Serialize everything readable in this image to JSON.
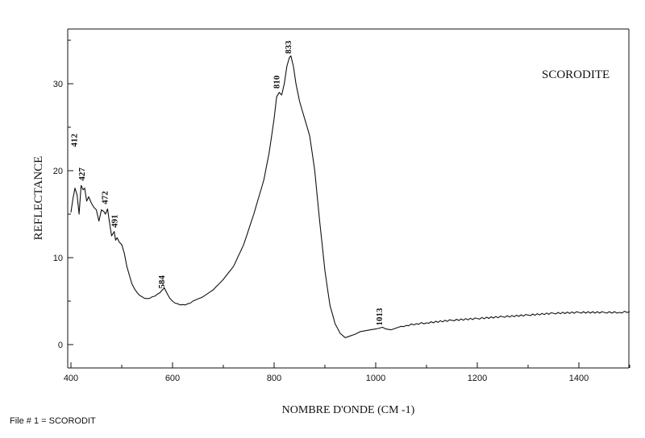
{
  "chart_data": {
    "type": "line",
    "title": "SCORODITE",
    "xlabel": "NOMBRE D'ONDE (CM -1)",
    "ylabel": "REFLECTANCE",
    "xlim": [
      400,
      1500
    ],
    "ylim": [
      -3,
      36
    ],
    "xticks": [
      400,
      600,
      800,
      1000,
      1200,
      1400
    ],
    "yticks": [
      0,
      10,
      20,
      30
    ],
    "grid": false,
    "series": [
      {
        "values_x": [
          400,
          404,
          408,
          412,
          416,
          420,
          424,
          427,
          431,
          435,
          440,
          445,
          450,
          455,
          460,
          465,
          468,
          472,
          476,
          480,
          485,
          488,
          491,
          495,
          500,
          505,
          510,
          515,
          520,
          530,
          540,
          550,
          560,
          570,
          580,
          584,
          590,
          600,
          610,
          620,
          630,
          640,
          660,
          680,
          700,
          720,
          740,
          760,
          780,
          790,
          800,
          805,
          810,
          815,
          820,
          825,
          830,
          833,
          838,
          843,
          850,
          860,
          870,
          880,
          890,
          900,
          910,
          920,
          930,
          940,
          950,
          960,
          970,
          980,
          990,
          1000,
          1008,
          1013,
          1020,
          1030,
          1040,
          1050,
          1060,
          1080,
          1100,
          1150,
          1200,
          1250,
          1300,
          1350,
          1400,
          1450,
          1480,
          1500
        ],
        "values_y": [
          15.2,
          16.8,
          18.0,
          17.2,
          15.0,
          18.3,
          17.8,
          18.0,
          16.5,
          17.0,
          16.3,
          15.8,
          15.5,
          14.2,
          15.5,
          15.3,
          15.0,
          15.6,
          14.0,
          12.5,
          13.0,
          12.0,
          12.3,
          11.8,
          11.5,
          10.5,
          9.0,
          8.0,
          7.0,
          6.0,
          5.5,
          5.3,
          5.5,
          5.8,
          6.3,
          6.5,
          5.8,
          5.0,
          4.7,
          4.6,
          4.7,
          5.0,
          5.5,
          6.3,
          7.5,
          9.0,
          11.5,
          15.0,
          19.0,
          22.0,
          26.0,
          28.5,
          29.0,
          28.7,
          30.0,
          32.0,
          33.0,
          33.2,
          32.0,
          30.0,
          28.0,
          26.0,
          24.0,
          20.0,
          14.0,
          8.5,
          4.5,
          2.4,
          1.3,
          0.8,
          1.0,
          1.2,
          1.5,
          1.6,
          1.7,
          1.8,
          1.9,
          2.0,
          1.8,
          1.7,
          1.9,
          2.1,
          2.2,
          2.4,
          2.5,
          2.8,
          3.0,
          3.2,
          3.4,
          3.6,
          3.7,
          3.7,
          3.7,
          3.8
        ]
      }
    ],
    "annotations": [
      {
        "label": "412",
        "x": 412,
        "y": 23.5
      },
      {
        "label": "427",
        "x": 427,
        "y": 19.6
      },
      {
        "label": "472",
        "x": 472,
        "y": 16.9
      },
      {
        "label": "491",
        "x": 491,
        "y": 14.2
      },
      {
        "label": "584",
        "x": 584,
        "y": 7.2
      },
      {
        "label": "810",
        "x": 810,
        "y": 30.2
      },
      {
        "label": "833",
        "x": 833,
        "y": 34.2
      },
      {
        "label": "1013",
        "x": 1013,
        "y": 3.2
      }
    ]
  },
  "footer": "File # 1  =  SCORODIT"
}
